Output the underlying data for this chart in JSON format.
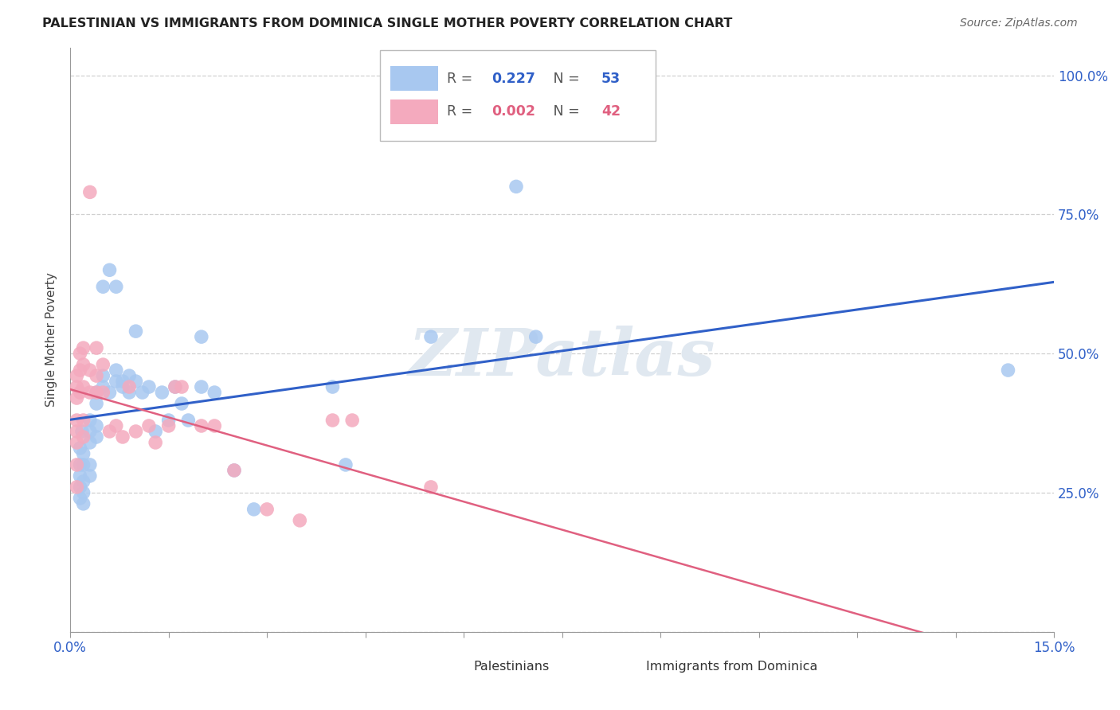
{
  "title": "PALESTINIAN VS IMMIGRANTS FROM DOMINICA SINGLE MOTHER POVERTY CORRELATION CHART",
  "source": "Source: ZipAtlas.com",
  "ylabel": "Single Mother Poverty",
  "xlim": [
    0.0,
    0.15
  ],
  "ylim": [
    0.0,
    1.05
  ],
  "blue_color": "#A8C8F0",
  "pink_color": "#F4AABE",
  "blue_line_color": "#3060C8",
  "pink_line_color": "#E06080",
  "r_blue": 0.227,
  "n_blue": 53,
  "r_pink": 0.002,
  "n_pink": 42,
  "legend_label_blue": "Palestinians",
  "legend_label_pink": "Immigrants from Dominica",
  "watermark": "ZIPatlas",
  "blue_x": [
    0.0015,
    0.0015,
    0.0015,
    0.0015,
    0.0015,
    0.0018,
    0.002,
    0.002,
    0.002,
    0.002,
    0.002,
    0.003,
    0.003,
    0.003,
    0.003,
    0.003,
    0.004,
    0.004,
    0.004,
    0.004,
    0.005,
    0.005,
    0.005,
    0.006,
    0.006,
    0.007,
    0.007,
    0.007,
    0.008,
    0.008,
    0.009,
    0.009,
    0.01,
    0.01,
    0.011,
    0.012,
    0.013,
    0.014,
    0.015,
    0.016,
    0.017,
    0.018,
    0.02,
    0.02,
    0.022,
    0.025,
    0.028,
    0.04,
    0.042,
    0.055,
    0.068,
    0.071,
    0.143
  ],
  "blue_y": [
    0.33,
    0.3,
    0.28,
    0.26,
    0.24,
    0.36,
    0.32,
    0.3,
    0.27,
    0.25,
    0.23,
    0.38,
    0.36,
    0.34,
    0.3,
    0.28,
    0.43,
    0.41,
    0.37,
    0.35,
    0.46,
    0.44,
    0.62,
    0.43,
    0.65,
    0.45,
    0.47,
    0.62,
    0.45,
    0.44,
    0.46,
    0.43,
    0.45,
    0.54,
    0.43,
    0.44,
    0.36,
    0.43,
    0.38,
    0.44,
    0.41,
    0.38,
    0.44,
    0.53,
    0.43,
    0.29,
    0.22,
    0.44,
    0.3,
    0.53,
    0.8,
    0.53,
    0.47
  ],
  "pink_x": [
    0.001,
    0.001,
    0.001,
    0.001,
    0.001,
    0.001,
    0.001,
    0.001,
    0.0015,
    0.0015,
    0.0015,
    0.002,
    0.002,
    0.002,
    0.002,
    0.002,
    0.003,
    0.003,
    0.003,
    0.004,
    0.004,
    0.004,
    0.005,
    0.005,
    0.006,
    0.007,
    0.008,
    0.009,
    0.01,
    0.012,
    0.013,
    0.015,
    0.016,
    0.017,
    0.02,
    0.022,
    0.025,
    0.03,
    0.035,
    0.04,
    0.043,
    0.055
  ],
  "pink_y": [
    0.38,
    0.42,
    0.44,
    0.46,
    0.36,
    0.34,
    0.3,
    0.26,
    0.5,
    0.47,
    0.43,
    0.51,
    0.48,
    0.44,
    0.38,
    0.35,
    0.79,
    0.47,
    0.43,
    0.51,
    0.46,
    0.43,
    0.48,
    0.43,
    0.36,
    0.37,
    0.35,
    0.44,
    0.36,
    0.37,
    0.34,
    0.37,
    0.44,
    0.44,
    0.37,
    0.37,
    0.29,
    0.22,
    0.2,
    0.38,
    0.38,
    0.26
  ]
}
